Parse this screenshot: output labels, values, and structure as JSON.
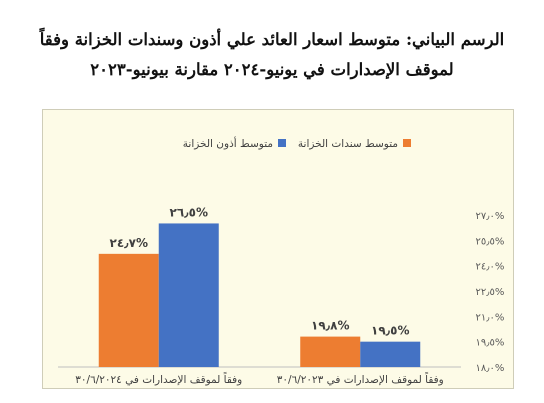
{
  "title_line1": "الرسم البياني: متوسط اسعار العائد علي أذون وسندات الخزانة وفقاً",
  "title_line2": "لموقف الإصدارات في يونيو-٢٠٢٤ مقارنة بيونيو-٢٠٢٣",
  "chart_data": {
    "type": "bar",
    "categories": [
      "وفقاً لموقف الإصدارات في ٣٠/٦/٢٠٢٤",
      "وفقاً لموقف الإصدارات في ٣٠/٦/٢٠٢٣"
    ],
    "series": [
      {
        "name": "متوسط سندات الخزانة",
        "values": [
          24.7,
          19.8
        ],
        "labels": [
          "٢٤٫٧%",
          "١٩٫٨%"
        ],
        "color": "#ed7d31"
      },
      {
        "name": "متوسط أذون الخزانة",
        "values": [
          26.5,
          19.5
        ],
        "labels": [
          "٢٦٫٥%",
          "١٩٫٥%"
        ],
        "color": "#4472c4"
      }
    ],
    "ylim": [
      18.0,
      27.0
    ],
    "yticks": [
      18.0,
      19.5,
      21.0,
      22.5,
      24.0,
      25.5,
      27.0
    ],
    "ytick_labels": [
      "١٨٫٠%",
      "١٩٫٥%",
      "٢١٫٠%",
      "٢٢٫٥%",
      "٢٤٫٠%",
      "٢٥٫٥%",
      "٢٧٫٠%"
    ],
    "legend_position": "top",
    "grid": false,
    "y_axis_side": "right"
  }
}
